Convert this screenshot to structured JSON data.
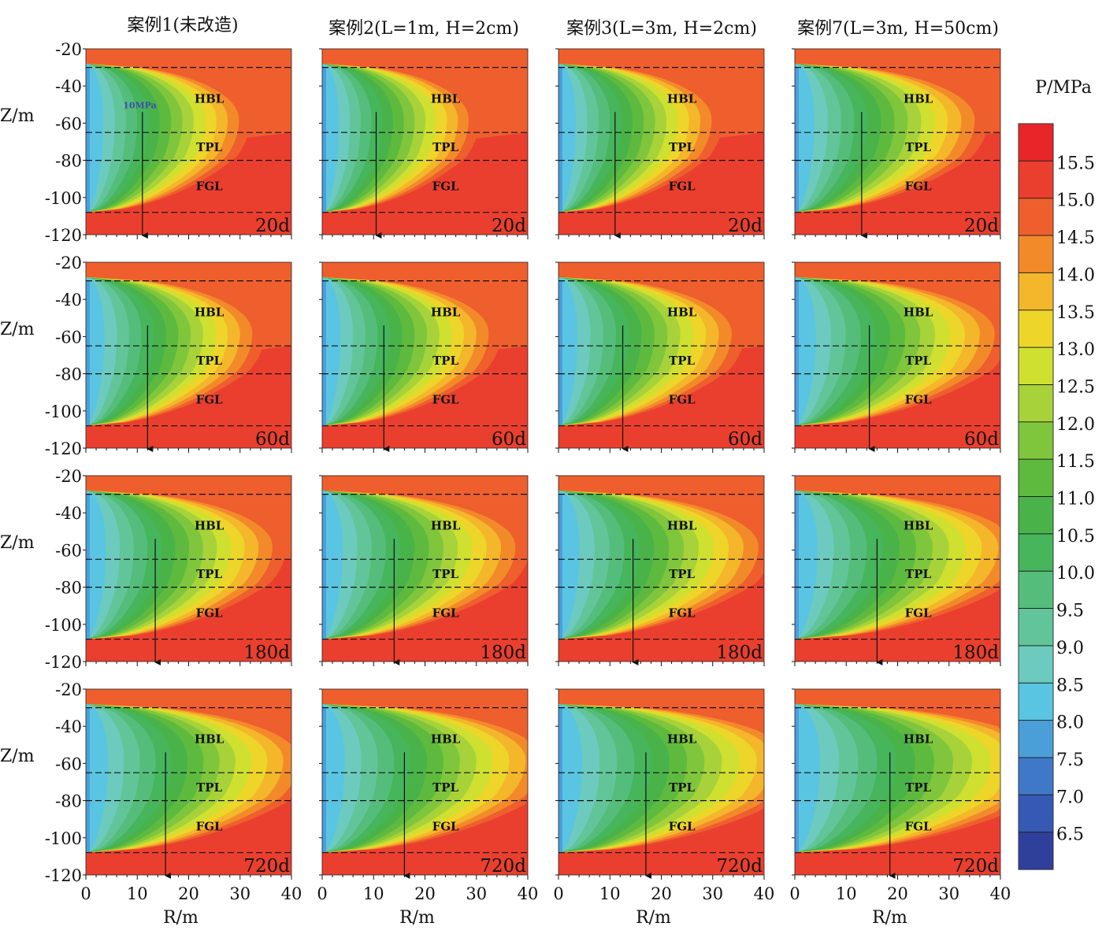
{
  "figure": {
    "column_titles": [
      "案例1(未改造)",
      "案例2(L=1m, H=2cm)",
      "案例3(L=3m, H=2cm)",
      "案例7(L=3m, H=50cm)"
    ],
    "row_labels": [
      "20d",
      "60d",
      "180d",
      "720d"
    ],
    "layer_labels": [
      "HBL",
      "TPL",
      "FGL"
    ],
    "annotation": "10MPa",
    "y_axis_label": "Z/m",
    "x_axis_label": "R/m",
    "colorbar_title": "P/MPa"
  },
  "chart_data": {
    "type": "heatmap",
    "xlabel": "R/m",
    "ylabel": "Z/m",
    "xlim": [
      0,
      40
    ],
    "ylim": [
      -120,
      -20
    ],
    "x_ticks": [
      0,
      10,
      20,
      30,
      40
    ],
    "y_ticks": [
      -20,
      -40,
      -60,
      -80,
      -100,
      -120
    ],
    "y_tick_labels": [
      "-20",
      "-40",
      "-60",
      "-80",
      "-100",
      "-120"
    ],
    "layer_boundaries_z": [
      -30,
      -65,
      -80,
      -108
    ],
    "colorbar": {
      "title": "P/MPa",
      "ticks": [
        "15.5",
        "15.0",
        "14.5",
        "14.0",
        "13.5",
        "13.0",
        "12.5",
        "12.0",
        "11.5",
        "11.0",
        "10.5",
        "10.0",
        "9.5",
        "9.0",
        "8.5",
        "8.0",
        "7.5",
        "7.0",
        "6.5"
      ],
      "colors": [
        "#e8262a",
        "#ea3f2e",
        "#ee5f2d",
        "#f38a2a",
        "#f4b62a",
        "#edd52a",
        "#cfe030",
        "#a7d23a",
        "#7fc63c",
        "#5eba3e",
        "#49b34a",
        "#46b55c",
        "#55bd7b",
        "#62c59a",
        "#6ccbbe",
        "#5ac5e2",
        "#4b9fd9",
        "#3f78c8",
        "#3559b4",
        "#2f3f9c"
      ]
    },
    "cases": [
      "案例1(未改造)",
      "案例2(L=1m, H=2cm)",
      "案例3(L=3m, H=2cm)",
      "案例7(L=3m, H=50cm)"
    ],
    "times": [
      "20d",
      "60d",
      "180d",
      "720d"
    ],
    "front_radius_10MPa": [
      [
        11,
        12,
        13.5,
        15.5
      ],
      [
        10.5,
        12,
        14,
        16
      ],
      [
        11,
        12.5,
        14.5,
        17
      ],
      [
        13,
        14.5,
        16,
        18.5
      ]
    ]
  }
}
